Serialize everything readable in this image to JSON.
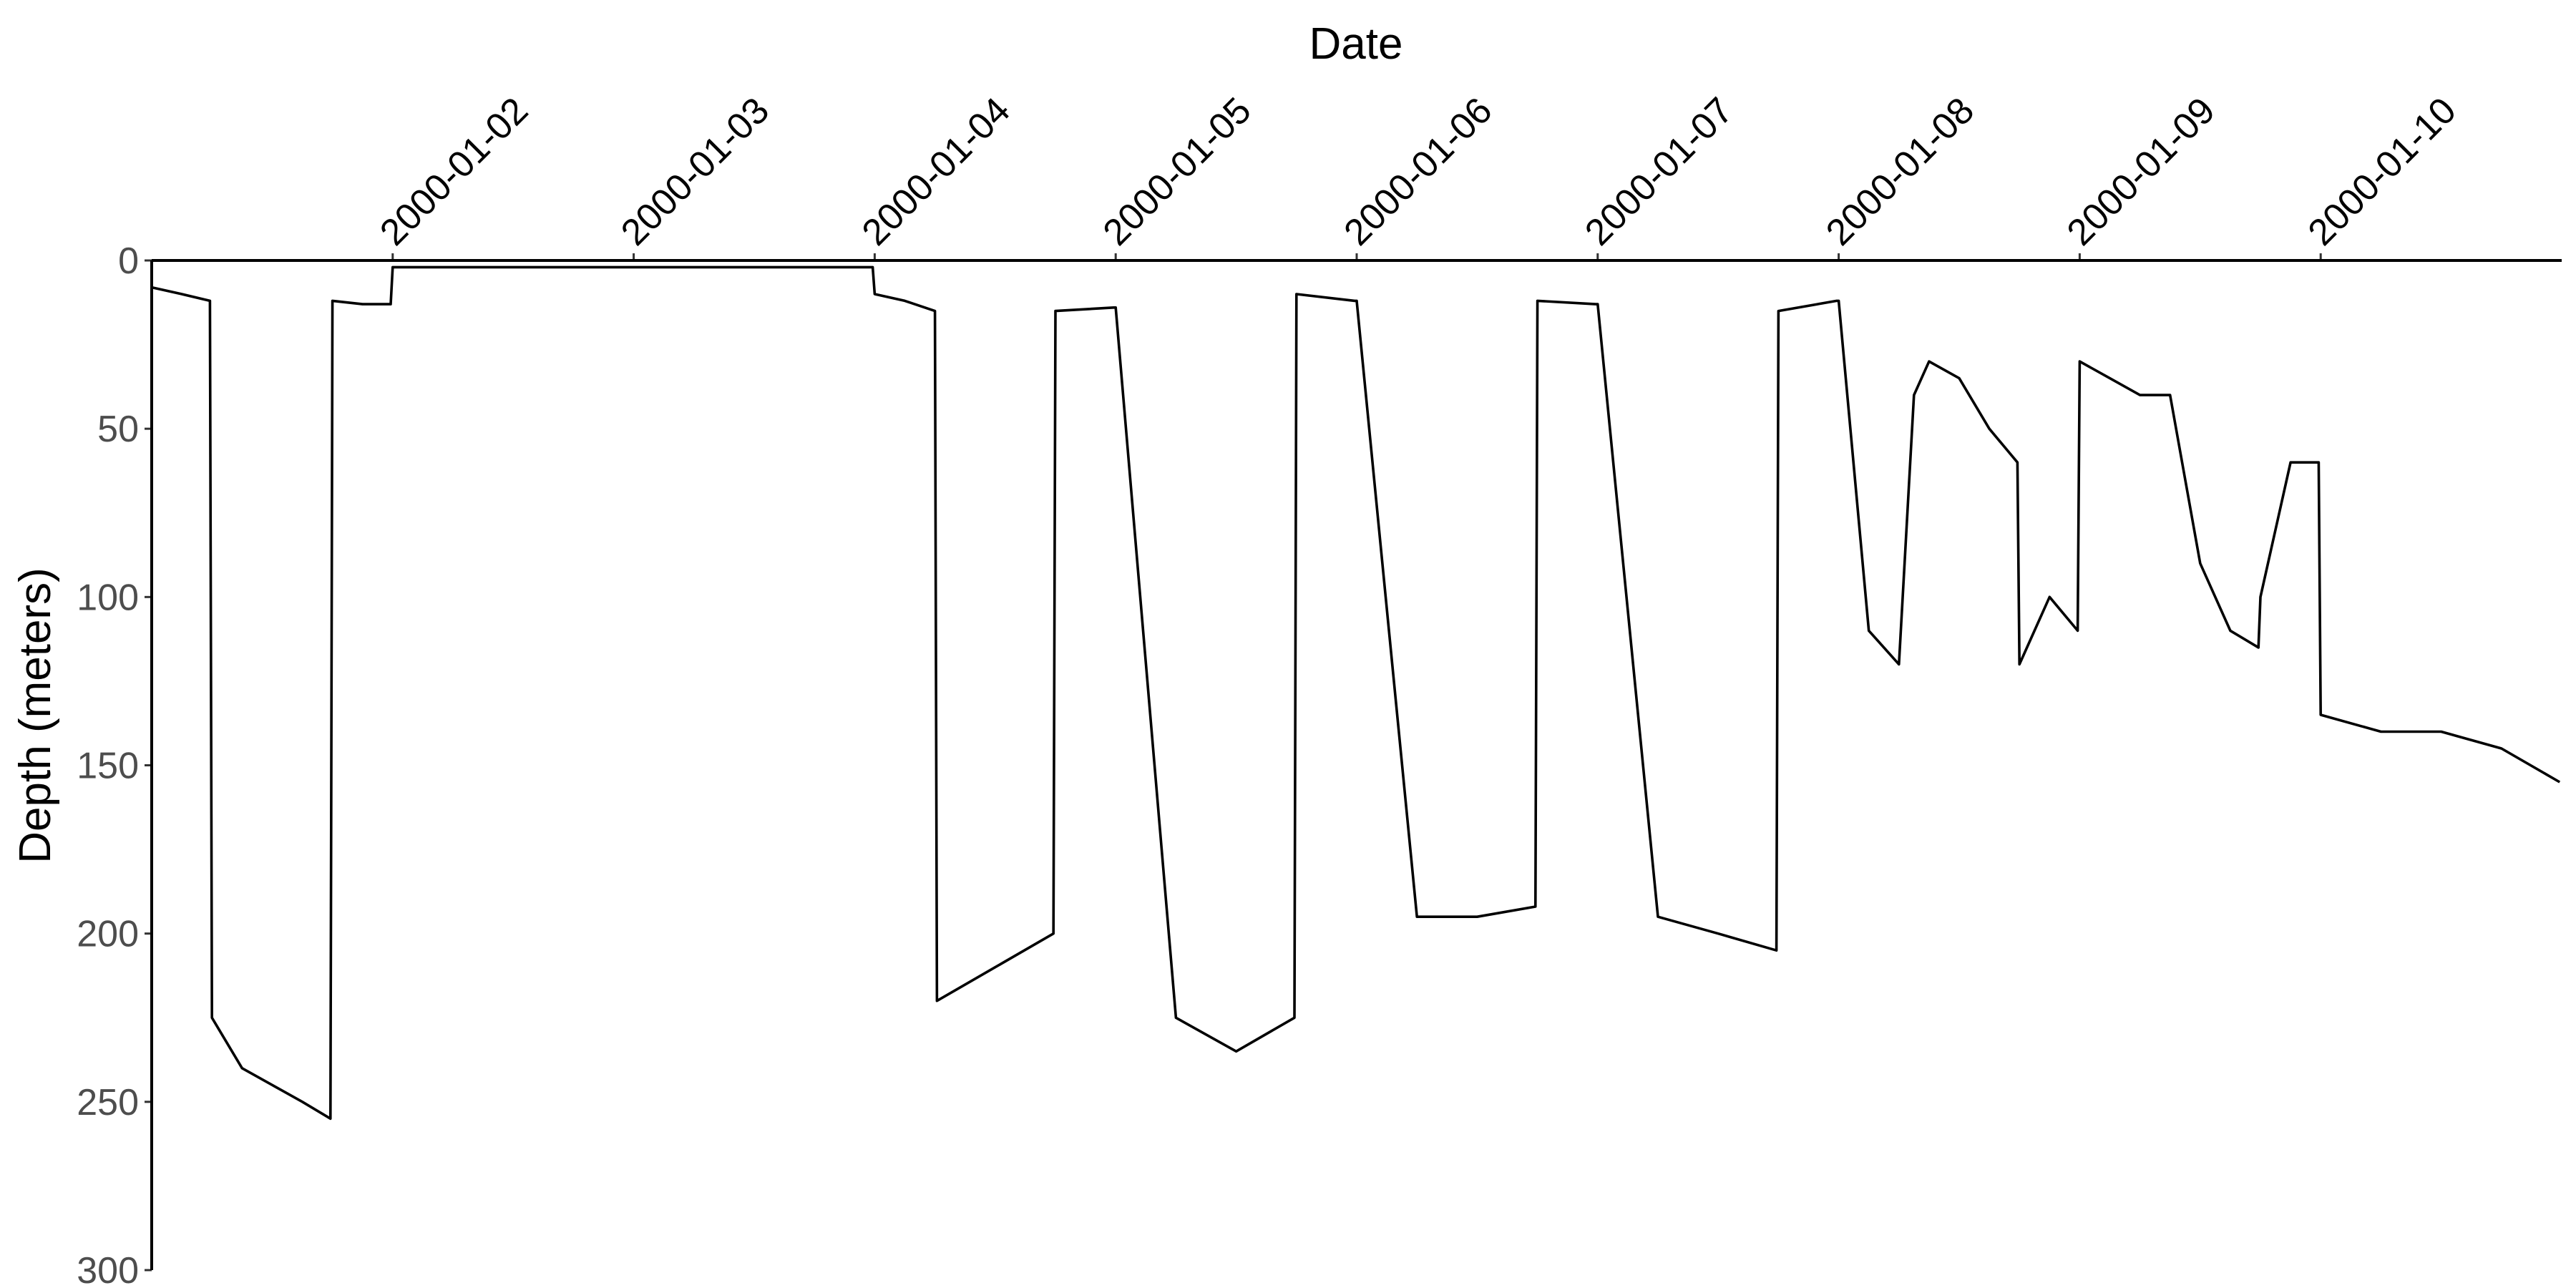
{
  "chart_data": {
    "type": "line",
    "xlabel": "Date",
    "ylabel": "Depth (meters)",
    "x_axis_position": "top",
    "y_reversed": true,
    "ylim": [
      0,
      300
    ],
    "yticks": [
      0,
      50,
      100,
      150,
      200,
      250,
      300
    ],
    "xlim": [
      "2000-01-01T00:00",
      "2000-01-11T00:00"
    ],
    "xticks": [
      "2000-01-02",
      "2000-01-03",
      "2000-01-04",
      "2000-01-05",
      "2000-01-06",
      "2000-01-07",
      "2000-01-08",
      "2000-01-09",
      "2000-01-10"
    ],
    "grid": false,
    "color": "#000000",
    "series": [
      {
        "x": [
          "2000-01-01T00:00",
          "2000-01-01T03:00",
          "2000-01-01T05:48",
          "2000-01-01T06:00",
          "2000-01-01T09:00",
          "2000-01-01T12:00",
          "2000-01-01T15:00",
          "2000-01-01T17:48",
          "2000-01-01T18:00",
          "2000-01-01T21:00",
          "2000-01-01T23:48",
          "2000-01-02T00:00",
          "2000-01-02T12:00",
          "2000-01-02T23:48",
          "2000-01-03T12:00",
          "2000-01-03T23:48",
          "2000-01-04T00:00",
          "2000-01-04T03:00",
          "2000-01-04T06:00",
          "2000-01-04T06:12",
          "2000-01-04T12:00",
          "2000-01-04T17:48",
          "2000-01-04T18:00",
          "2000-01-04T23:48",
          "2000-01-05T00:00",
          "2000-01-05T06:00",
          "2000-01-05T12:00",
          "2000-01-05T17:48",
          "2000-01-05T18:00",
          "2000-01-05T23:48",
          "2000-01-06T00:00",
          "2000-01-06T06:00",
          "2000-01-06T12:00",
          "2000-01-06T17:48",
          "2000-01-06T18:00",
          "2000-01-06T23:48",
          "2000-01-07T00:00",
          "2000-01-07T06:00",
          "2000-01-07T12:00",
          "2000-01-07T17:48",
          "2000-01-07T18:00",
          "2000-01-07T23:48",
          "2000-01-08T00:00",
          "2000-01-08T03:00",
          "2000-01-08T06:00",
          "2000-01-08T07:30",
          "2000-01-08T09:00",
          "2000-01-08T12:00",
          "2000-01-08T15:00",
          "2000-01-08T17:48",
          "2000-01-08T18:00",
          "2000-01-08T21:00",
          "2000-01-08T23:48",
          "2000-01-09T00:00",
          "2000-01-09T03:00",
          "2000-01-09T06:00",
          "2000-01-09T09:00",
          "2000-01-09T12:00",
          "2000-01-09T15:00",
          "2000-01-09T17:48",
          "2000-01-09T18:00",
          "2000-01-09T21:00",
          "2000-01-09T23:48",
          "2000-01-10T00:00",
          "2000-01-10T06:00",
          "2000-01-10T12:00",
          "2000-01-10T18:00",
          "2000-01-10T23:48"
        ],
        "y": [
          8,
          10,
          12,
          225,
          240,
          245,
          250,
          255,
          12,
          13,
          13,
          2,
          2,
          2,
          2,
          2,
          10,
          12,
          15,
          220,
          210,
          200,
          15,
          14,
          14,
          225,
          235,
          225,
          10,
          12,
          12,
          195,
          195,
          192,
          12,
          13,
          13,
          195,
          200,
          205,
          15,
          12,
          12,
          110,
          120,
          40,
          30,
          35,
          50,
          60,
          120,
          100,
          110,
          30,
          35,
          40,
          40,
          90,
          110,
          115,
          100,
          60,
          60,
          135,
          140,
          140,
          145,
          155
        ]
      }
    ]
  }
}
